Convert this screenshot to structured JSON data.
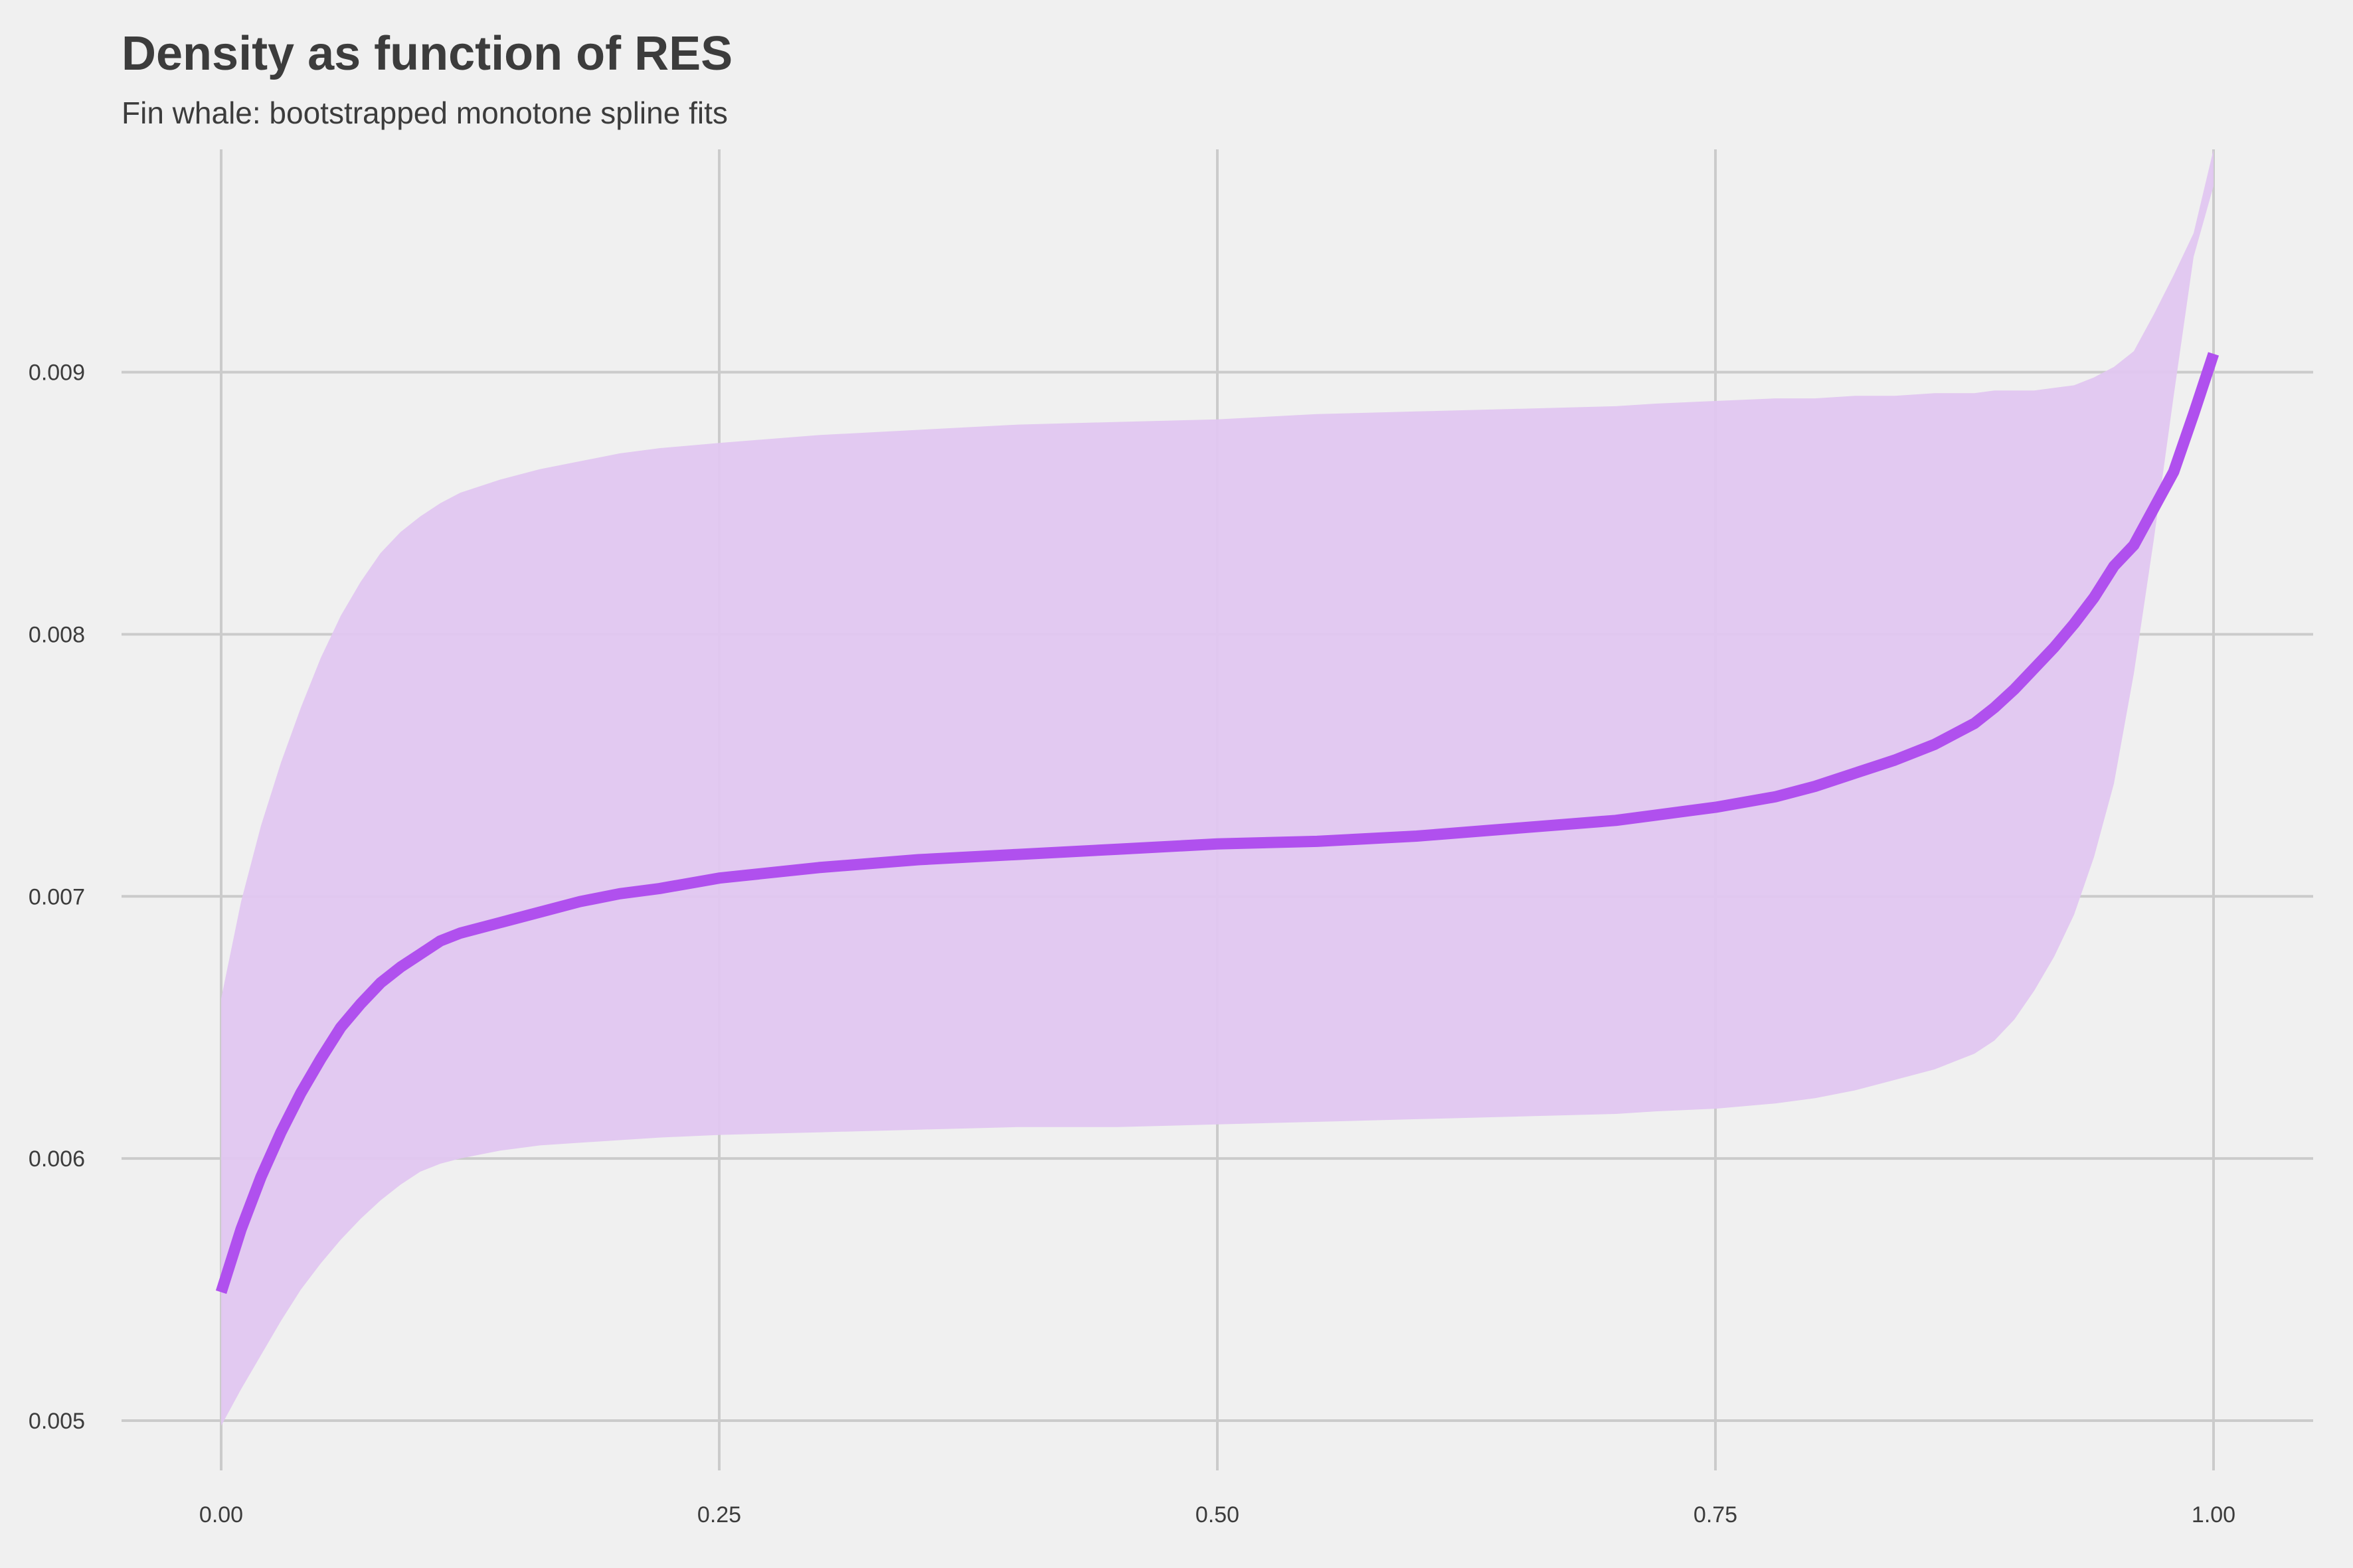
{
  "chart_data": {
    "type": "line",
    "title": "Density as function of RES",
    "subtitle": "Fin whale: bootstrapped monotone spline fits",
    "xlabel": "",
    "ylabel": "",
    "xlim": [
      -0.05,
      1.05
    ],
    "ylim": [
      0.00481,
      0.00985
    ],
    "x_ticks": [
      0.0,
      0.25,
      0.5,
      0.75,
      1.0
    ],
    "x_tick_labels": [
      "0.00",
      "0.25",
      "0.50",
      "0.75",
      "1.00"
    ],
    "y_ticks": [
      0.005,
      0.006,
      0.007,
      0.008,
      0.009
    ],
    "y_tick_labels": [
      "0.005",
      "0.006",
      "0.007",
      "0.008",
      "0.009"
    ],
    "grid": true,
    "legend": "none",
    "colors": {
      "line": "#b050ee",
      "band": "#e0c6f0",
      "background": "#f0f0f0",
      "grid": "#cbcbcb",
      "text": "#3c3c3c"
    },
    "series": [
      {
        "x": [
          0.0,
          0.01,
          0.02,
          0.03,
          0.04,
          0.05,
          0.06,
          0.07,
          0.08,
          0.09,
          0.1,
          0.11,
          0.12,
          0.14,
          0.16,
          0.18,
          0.2,
          0.22,
          0.25,
          0.3,
          0.35,
          0.4,
          0.45,
          0.5,
          0.55,
          0.6,
          0.65,
          0.7,
          0.72,
          0.75,
          0.78,
          0.8,
          0.82,
          0.84,
          0.86,
          0.87,
          0.88,
          0.89,
          0.9,
          0.91,
          0.92,
          0.93,
          0.94,
          0.95,
          0.96,
          0.97,
          0.98,
          0.99,
          1.0
        ],
        "values": [
          0.00549,
          0.00573,
          0.00593,
          0.0061,
          0.00625,
          0.00638,
          0.0065,
          0.00659,
          0.00667,
          0.00673,
          0.00678,
          0.00683,
          0.00686,
          0.0069,
          0.00694,
          0.00698,
          0.00701,
          0.00703,
          0.00707,
          0.00711,
          0.00714,
          0.00716,
          0.00718,
          0.0072,
          0.00721,
          0.00723,
          0.00726,
          0.00729,
          0.00731,
          0.00734,
          0.00738,
          0.00742,
          0.00747,
          0.00752,
          0.00758,
          0.00762,
          0.00766,
          0.00772,
          0.00779,
          0.00787,
          0.00795,
          0.00804,
          0.00814,
          0.00826,
          0.00834,
          0.00848,
          0.00862,
          0.00884,
          0.00907
        ],
        "band_lower": [
          0.00498,
          0.00512,
          0.00525,
          0.00538,
          0.0055,
          0.0056,
          0.00569,
          0.00577,
          0.00584,
          0.0059,
          0.00595,
          0.00598,
          0.006,
          0.00603,
          0.00605,
          0.00606,
          0.00607,
          0.00608,
          0.00609,
          0.0061,
          0.00611,
          0.00612,
          0.00612,
          0.00613,
          0.00614,
          0.00615,
          0.00616,
          0.00617,
          0.00618,
          0.00619,
          0.00621,
          0.00623,
          0.00626,
          0.0063,
          0.00634,
          0.00637,
          0.0064,
          0.00645,
          0.00653,
          0.00664,
          0.00677,
          0.00693,
          0.00715,
          0.00743,
          0.00785,
          0.00836,
          0.00891,
          0.00944,
          0.00971
        ],
        "band_upper": [
          0.00661,
          0.00698,
          0.00727,
          0.00751,
          0.00772,
          0.00791,
          0.00807,
          0.0082,
          0.00831,
          0.00839,
          0.00845,
          0.0085,
          0.00854,
          0.00859,
          0.00863,
          0.00866,
          0.00869,
          0.00871,
          0.00873,
          0.00876,
          0.00878,
          0.0088,
          0.00881,
          0.00882,
          0.00884,
          0.00885,
          0.00886,
          0.00887,
          0.00888,
          0.00889,
          0.0089,
          0.0089,
          0.00891,
          0.00891,
          0.00892,
          0.00892,
          0.00892,
          0.00893,
          0.00893,
          0.00893,
          0.00894,
          0.00895,
          0.00898,
          0.00902,
          0.00908,
          0.00922,
          0.00937,
          0.00953,
          0.00985
        ]
      }
    ]
  }
}
